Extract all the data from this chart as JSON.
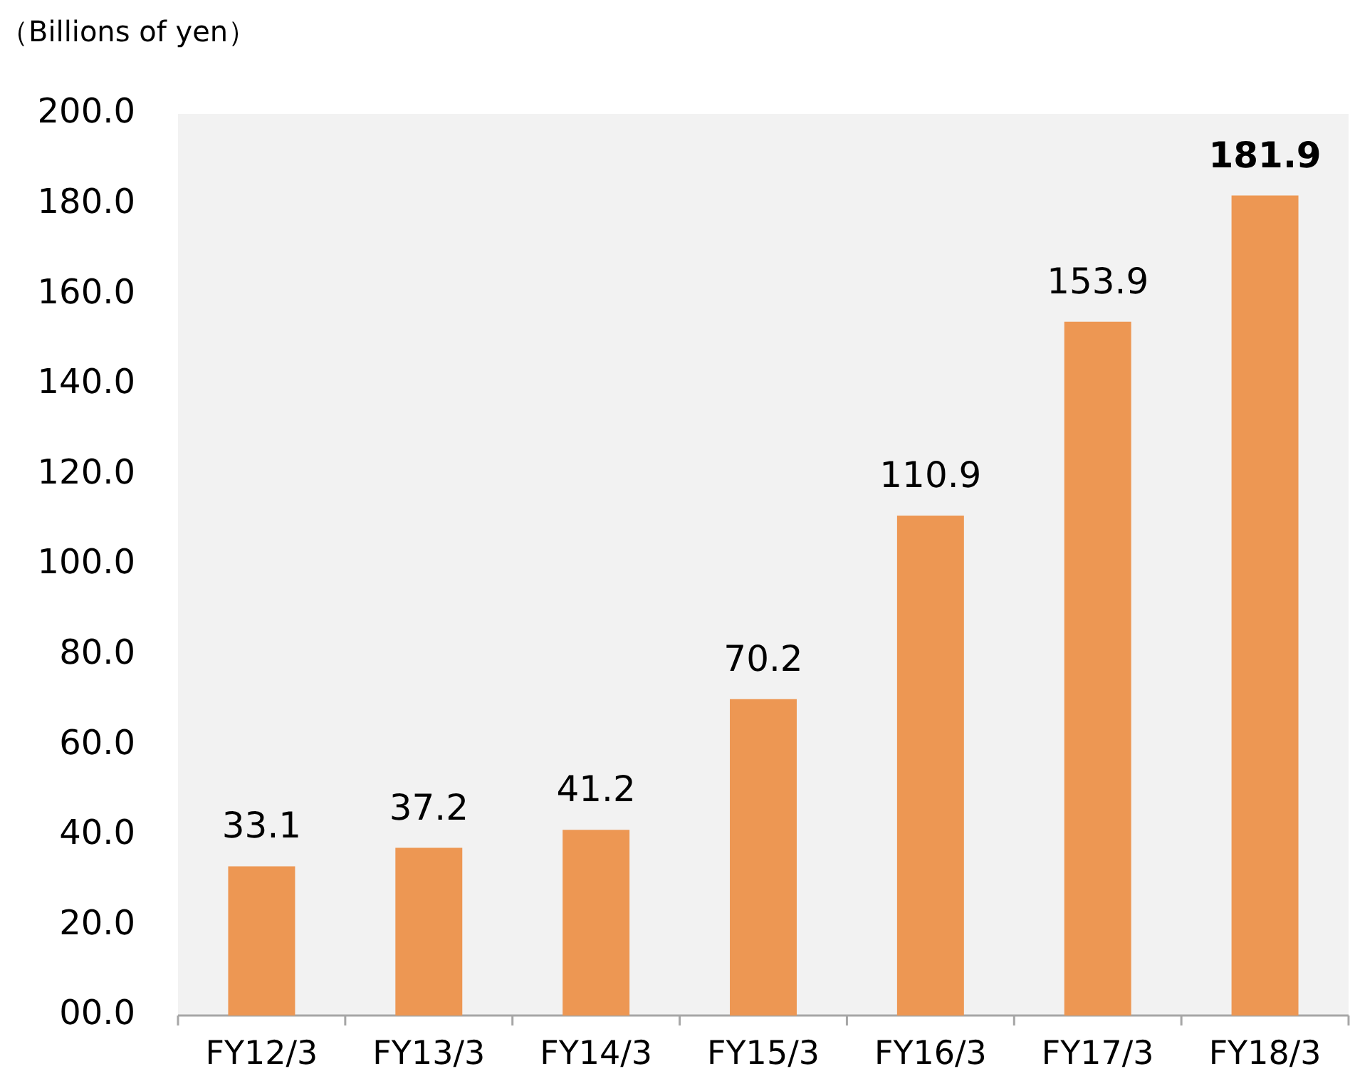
{
  "chart_data": {
    "type": "bar",
    "ylabel": "（Billions of yen）",
    "categories": [
      "FY12/3",
      "FY13/3",
      "FY14/3",
      "FY15/3",
      "FY16/3",
      "FY17/3",
      "FY18/3"
    ],
    "values": [
      33.1,
      37.2,
      41.2,
      70.2,
      110.9,
      153.9,
      181.9
    ],
    "color": "#ed9753",
    "ylim": [
      0,
      200
    ],
    "yticks": [
      {
        "value": 0,
        "label": "00.0"
      },
      {
        "value": 20,
        "label": "20.0"
      },
      {
        "value": 40,
        "label": "40.0"
      },
      {
        "value": 60,
        "label": "60.0"
      },
      {
        "value": 80,
        "label": "80.0"
      },
      {
        "value": 100,
        "label": "100.0"
      },
      {
        "value": 120,
        "label": "120.0"
      },
      {
        "value": 140,
        "label": "140.0"
      },
      {
        "value": 160,
        "label": "160.0"
      },
      {
        "value": 180,
        "label": "180.0"
      },
      {
        "value": 200,
        "label": "200.0"
      }
    ],
    "data_labels": true,
    "grid": false,
    "legend": false
  }
}
